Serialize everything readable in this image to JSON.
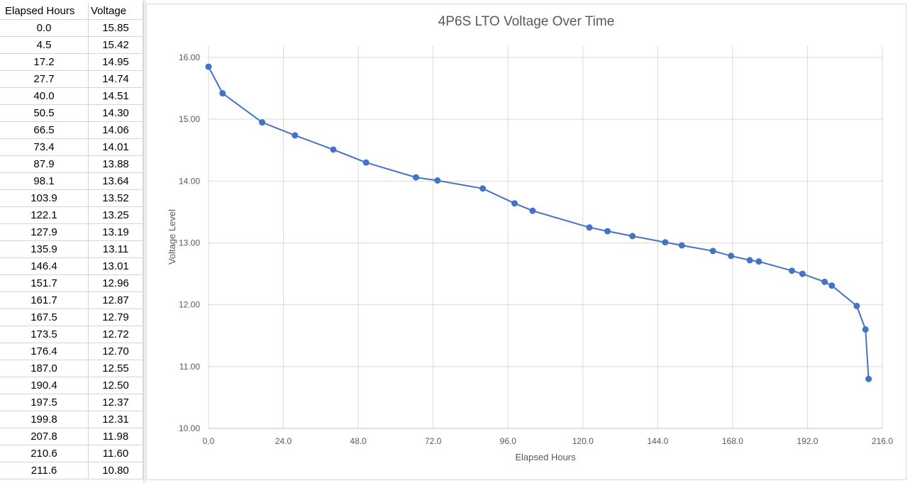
{
  "sheet": {
    "headers": [
      "Elapsed Hours",
      "Voltage"
    ],
    "rows": [
      [
        "0.0",
        "15.85"
      ],
      [
        "4.5",
        "15.42"
      ],
      [
        "17.2",
        "14.95"
      ],
      [
        "27.7",
        "14.74"
      ],
      [
        "40.0",
        "14.51"
      ],
      [
        "50.5",
        "14.30"
      ],
      [
        "66.5",
        "14.06"
      ],
      [
        "73.4",
        "14.01"
      ],
      [
        "87.9",
        "13.88"
      ],
      [
        "98.1",
        "13.64"
      ],
      [
        "103.9",
        "13.52"
      ],
      [
        "122.1",
        "13.25"
      ],
      [
        "127.9",
        "13.19"
      ],
      [
        "135.9",
        "13.11"
      ],
      [
        "146.4",
        "13.01"
      ],
      [
        "151.7",
        "12.96"
      ],
      [
        "161.7",
        "12.87"
      ],
      [
        "167.5",
        "12.79"
      ],
      [
        "173.5",
        "12.72"
      ],
      [
        "176.4",
        "12.70"
      ],
      [
        "187.0",
        "12.55"
      ],
      [
        "190.4",
        "12.50"
      ],
      [
        "197.5",
        "12.37"
      ],
      [
        "199.8",
        "12.31"
      ],
      [
        "207.8",
        "11.98"
      ],
      [
        "210.6",
        "11.60"
      ],
      [
        "211.6",
        "10.80"
      ]
    ]
  },
  "chart_data": {
    "type": "line",
    "title": "4P6S LTO Voltage Over Time",
    "xlabel": "Elapsed Hours",
    "ylabel": "Voltage Level",
    "xlim": [
      0,
      216
    ],
    "ylim": [
      10,
      16
    ],
    "xticks": [
      "0.0",
      "24.0",
      "48.0",
      "72.0",
      "96.0",
      "120.0",
      "144.0",
      "168.0",
      "192.0",
      "216.0"
    ],
    "yticks": [
      "10.00",
      "11.00",
      "12.00",
      "13.00",
      "14.00",
      "15.00",
      "16.00"
    ],
    "grid": true,
    "color": "#4472c4",
    "x": [
      0.0,
      4.5,
      17.2,
      27.7,
      40.0,
      50.5,
      66.5,
      73.4,
      87.9,
      98.1,
      103.9,
      122.1,
      127.9,
      135.9,
      146.4,
      151.7,
      161.7,
      167.5,
      173.5,
      176.4,
      187.0,
      190.4,
      197.5,
      199.8,
      207.8,
      210.6,
      211.6
    ],
    "y": [
      15.85,
      15.42,
      14.95,
      14.74,
      14.51,
      14.3,
      14.06,
      14.01,
      13.88,
      13.64,
      13.52,
      13.25,
      13.19,
      13.11,
      13.01,
      12.96,
      12.87,
      12.79,
      12.72,
      12.7,
      12.55,
      12.5,
      12.37,
      12.31,
      11.98,
      11.6,
      10.8
    ]
  }
}
